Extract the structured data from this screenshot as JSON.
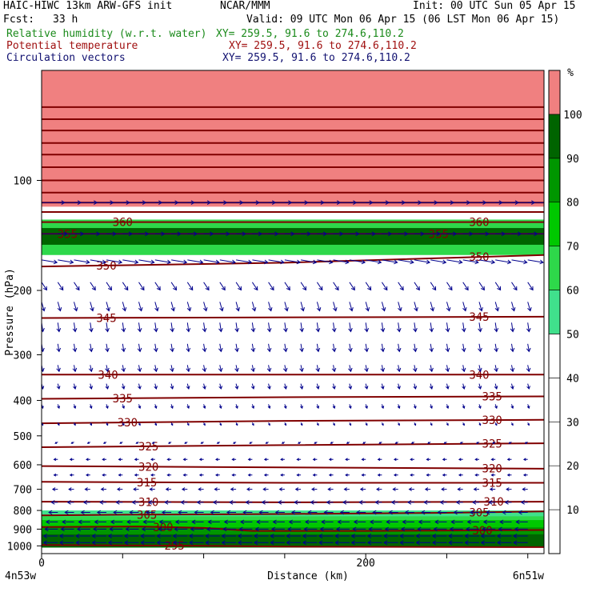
{
  "header": {
    "model": "HAIC-HIWC 13km ARW-GFS init",
    "org": "NCAR/MMM",
    "init": "Init: 00 UTC Sun 05 Apr 15",
    "fcst_label": "Fcst:",
    "fcst_value": "33 h",
    "valid": "Valid: 09 UTC Mon 06 Apr 15 (06 LST Mon 06 Apr 15)",
    "field1_name": "Relative humidity (w.r.t. water)",
    "field1_xy": "XY= 259.5, 91.6 to 274.6,110.2",
    "field2_name": "Potential temperature",
    "field2_xy": "XY= 259.5, 91.6 to 274.6,110.2",
    "field3_name": "Circulation vectors",
    "field3_xy": "XY= 259.5, 91.6 to 274.6,110.2"
  },
  "colors": {
    "theta": "#800000",
    "vector": "#00008c",
    "rh_bands": [
      "#ffffff",
      "#ffffff",
      "#ffffff",
      "#ffffff",
      "#ffffff",
      "#40e08c",
      "#2ed84a",
      "#00c800",
      "#009600",
      "#006400",
      "#f08080"
    ]
  },
  "chart_data": {
    "type": "cross-section",
    "xlabel": "Distance (km)",
    "ylabel": "Pressure (hPa)",
    "xlim": [
      0,
      310
    ],
    "ylim": [
      1050,
      50
    ],
    "y_scale": "log-pressure",
    "x_ticks": [
      0,
      50,
      100,
      150,
      200,
      250,
      300
    ],
    "x_tick_labels": [
      {
        "value": 0,
        "label": "0"
      },
      {
        "value": 200,
        "label": "200"
      }
    ],
    "y_ticks": [
      100,
      200,
      300,
      400,
      500,
      600,
      700,
      800,
      900,
      1000
    ],
    "left_end_label": "4n53w",
    "right_end_label": "6n51w",
    "colorbar": {
      "unit": "%",
      "levels": [
        10,
        20,
        30,
        40,
        50,
        60,
        70,
        80,
        90,
        100
      ]
    },
    "rh_regions": [
      {
        "value": 100,
        "p_top": 50,
        "p_bottom": 118
      },
      {
        "value": 60,
        "p_top": 128,
        "p_bottom": 160
      },
      {
        "value": 90,
        "p_top": 135,
        "p_bottom": 150
      },
      {
        "value": 50,
        "p_top": 800,
        "p_bottom": 1010
      },
      {
        "value": 60,
        "p_top": 830,
        "p_bottom": 1010
      },
      {
        "value": 70,
        "p_top": 850,
        "p_bottom": 1010
      },
      {
        "value": 80,
        "p_top": 890,
        "p_bottom": 1010
      },
      {
        "value": 90,
        "p_top": 930,
        "p_bottom": 1010
      }
    ],
    "theta_contours": [
      {
        "level": 295,
        "label": "295",
        "points": [
          [
            0,
            995
          ],
          [
            100,
            1000
          ],
          [
            150,
            1005
          ],
          [
            310,
            1008
          ]
        ],
        "label_x": [
          82
        ]
      },
      {
        "level": 300,
        "label": "300",
        "points": [
          [
            0,
            888
          ],
          [
            60,
            885
          ],
          [
            100,
            893
          ],
          [
            130,
            910
          ],
          [
            200,
            910
          ],
          [
            310,
            905
          ]
        ],
        "label_x": [
          75,
          272
        ]
      },
      {
        "level": 305,
        "label": "305",
        "points": [
          [
            0,
            825
          ],
          [
            50,
            822
          ],
          [
            150,
            818
          ],
          [
            250,
            812
          ],
          [
            310,
            805
          ]
        ],
        "label_x": [
          65,
          270
        ]
      },
      {
        "level": 310,
        "label": "310",
        "points": [
          [
            0,
            757
          ],
          [
            150,
            760
          ],
          [
            310,
            757
          ]
        ],
        "label_x": [
          66,
          279
        ]
      },
      {
        "level": 315,
        "label": "315",
        "points": [
          [
            0,
            668
          ],
          [
            150,
            672
          ],
          [
            310,
            672
          ]
        ],
        "label_x": [
          65,
          278
        ]
      },
      {
        "level": 320,
        "label": "320",
        "points": [
          [
            0,
            605
          ],
          [
            150,
            610
          ],
          [
            310,
            615
          ]
        ],
        "label_x": [
          66,
          278
        ]
      },
      {
        "level": 325,
        "label": "325",
        "points": [
          [
            0,
            537
          ],
          [
            150,
            530
          ],
          [
            310,
            524
          ]
        ],
        "label_x": [
          66,
          278
        ]
      },
      {
        "level": 330,
        "label": "330",
        "points": [
          [
            0,
            462
          ],
          [
            150,
            455
          ],
          [
            310,
            452
          ]
        ],
        "label_x": [
          53,
          278
        ]
      },
      {
        "level": 335,
        "label": "335",
        "points": [
          [
            0,
            396
          ],
          [
            150,
            392
          ],
          [
            310,
            390
          ]
        ],
        "label_x": [
          50,
          278
        ]
      },
      {
        "level": 340,
        "label": "340",
        "points": [
          [
            0,
            340
          ],
          [
            310,
            340
          ]
        ],
        "label_x": [
          41,
          270
        ]
      },
      {
        "level": 345,
        "label": "345",
        "points": [
          [
            0,
            238
          ],
          [
            310,
            236
          ]
        ],
        "label_x": [
          40,
          270
        ]
      },
      {
        "level": 350,
        "label": "350",
        "points": [
          [
            0,
            172
          ],
          [
            150,
            168
          ],
          [
            310,
            160
          ]
        ],
        "label_x": [
          40,
          270
        ]
      },
      {
        "level": 355,
        "label": "355",
        "points": [
          [
            0,
            140
          ],
          [
            310,
            140
          ]
        ],
        "label_x": [
          16,
          245
        ]
      },
      {
        "level": 360,
        "label": "360",
        "points": [
          [
            0,
            130
          ],
          [
            310,
            130
          ]
        ],
        "label_x": [
          50,
          270
        ]
      },
      {
        "level": 365,
        "label": "",
        "points": [
          [
            0,
            122
          ],
          [
            310,
            122
          ]
        ],
        "label_x": []
      },
      {
        "level": 370,
        "label": "",
        "points": [
          [
            0,
            115
          ],
          [
            310,
            115
          ]
        ],
        "label_x": []
      },
      {
        "level": 380,
        "label": "",
        "points": [
          [
            0,
            108
          ],
          [
            310,
            108
          ]
        ],
        "label_x": []
      },
      {
        "level": 390,
        "label": "",
        "points": [
          [
            0,
            100
          ],
          [
            310,
            100
          ]
        ],
        "label_x": []
      },
      {
        "level": 400,
        "label": "",
        "points": [
          [
            0,
            92
          ],
          [
            310,
            92
          ]
        ],
        "label_x": []
      },
      {
        "level": 410,
        "label": "",
        "points": [
          [
            0,
            85
          ],
          [
            310,
            85
          ]
        ],
        "label_x": []
      },
      {
        "level": 420,
        "label": "",
        "points": [
          [
            0,
            79
          ],
          [
            310,
            79
          ]
        ],
        "label_x": []
      },
      {
        "level": 430,
        "label": "",
        "points": [
          [
            0,
            73
          ],
          [
            310,
            73
          ]
        ],
        "label_x": []
      },
      {
        "level": 440,
        "label": "",
        "points": [
          [
            0,
            68
          ],
          [
            310,
            68
          ]
        ],
        "label_x": []
      },
      {
        "level": 450,
        "label": "",
        "points": [
          [
            0,
            63
          ],
          [
            310,
            63
          ]
        ],
        "label_x": []
      }
    ],
    "vectors": {
      "x_columns": [
        0,
        10,
        20,
        30,
        40,
        50,
        60,
        70,
        80,
        90,
        100,
        110,
        120,
        130,
        140,
        150,
        160,
        170,
        180,
        190,
        200,
        210,
        220,
        230,
        240,
        250,
        260,
        270,
        280,
        290,
        300
      ],
      "levels": [
        {
          "p": 115,
          "u": 18,
          "w": 0
        },
        {
          "p": 140,
          "u": 20,
          "w": 0
        },
        {
          "p": 165,
          "u": 12,
          "w": -2
        },
        {
          "p": 190,
          "u": 4,
          "w": -6
        },
        {
          "p": 215,
          "u": 2,
          "w": -7
        },
        {
          "p": 245,
          "u": 1,
          "w": -7
        },
        {
          "p": 280,
          "u": 1,
          "w": -6
        },
        {
          "p": 320,
          "u": 1,
          "w": -5
        },
        {
          "p": 360,
          "u": 1,
          "w": -4
        },
        {
          "p": 410,
          "u": 1,
          "w": -3
        },
        {
          "p": 460,
          "u": 1,
          "w": -2
        },
        {
          "p": 520,
          "u": -2,
          "w": -1
        },
        {
          "p": 580,
          "u": -3,
          "w": 0
        },
        {
          "p": 640,
          "u": -3,
          "w": 0
        },
        {
          "p": 700,
          "u": -4,
          "w": 0
        },
        {
          "p": 760,
          "u": -5,
          "w": 0
        },
        {
          "p": 810,
          "u": -7,
          "w": 0
        },
        {
          "p": 860,
          "u": -9,
          "w": 0
        },
        {
          "p": 900,
          "u": -10,
          "w": 0
        },
        {
          "p": 940,
          "u": -11,
          "w": 0
        },
        {
          "p": 980,
          "u": -11,
          "w": 0
        }
      ]
    }
  }
}
